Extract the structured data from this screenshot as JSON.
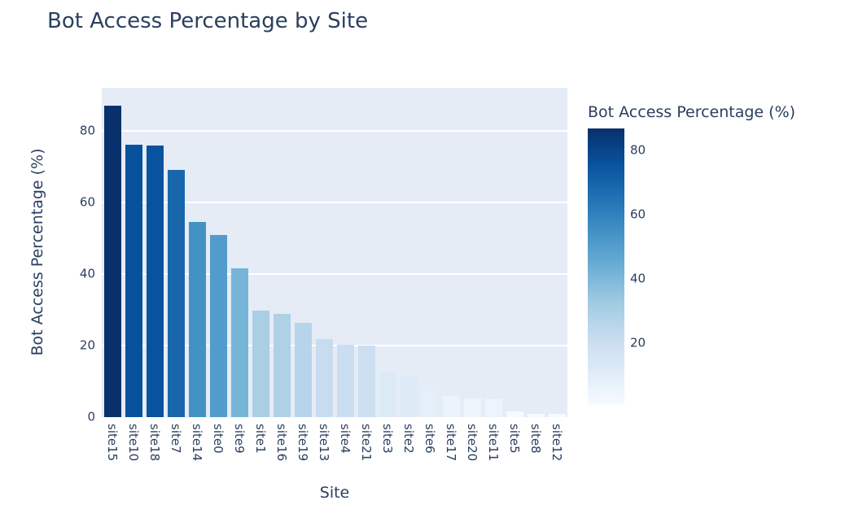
{
  "colors": {
    "text": "#2a3f5f",
    "paper_bg": "#ffffff",
    "plot_bg": "#e5ecf6",
    "gridline": "#ffffff"
  },
  "chart_data": {
    "type": "bar",
    "title": "Bot Access Percentage by Site",
    "xlabel": "Site",
    "ylabel": "Bot Access Percentage (%)",
    "categories": [
      "site15",
      "site10",
      "site18",
      "site7",
      "site14",
      "site0",
      "site9",
      "site1",
      "site16",
      "site19",
      "site13",
      "site4",
      "site21",
      "site3",
      "site2",
      "site6",
      "site17",
      "site20",
      "site11",
      "site5",
      "site8",
      "site12"
    ],
    "values": [
      86.9,
      76.1,
      75.8,
      69.0,
      54.6,
      50.8,
      41.6,
      29.8,
      28.9,
      26.3,
      21.9,
      20.3,
      19.9,
      12.5,
      11.8,
      8.8,
      6.0,
      5.2,
      5.0,
      1.7,
      1.0,
      0.8
    ],
    "ylim": [
      0,
      92
    ],
    "yticks": [
      0,
      20,
      40,
      60,
      80
    ],
    "grid": true,
    "legend_position": "right-colorbar",
    "color_by_value": true,
    "colorscale": {
      "name": "Blues",
      "stops": [
        [
          0,
          "#f7fbff"
        ],
        [
          0.125,
          "#deebf7"
        ],
        [
          0.25,
          "#c6dbef"
        ],
        [
          0.375,
          "#9ecae1"
        ],
        [
          0.5,
          "#6baed6"
        ],
        [
          0.625,
          "#4292c6"
        ],
        [
          0.75,
          "#2171b5"
        ],
        [
          0.875,
          "#08519c"
        ],
        [
          1,
          "#08306b"
        ]
      ]
    },
    "colorbar": {
      "title": "Bot Access Percentage (%)",
      "ticks": [
        20,
        40,
        60,
        80
      ],
      "range": [
        0.8,
        86.9
      ]
    }
  }
}
